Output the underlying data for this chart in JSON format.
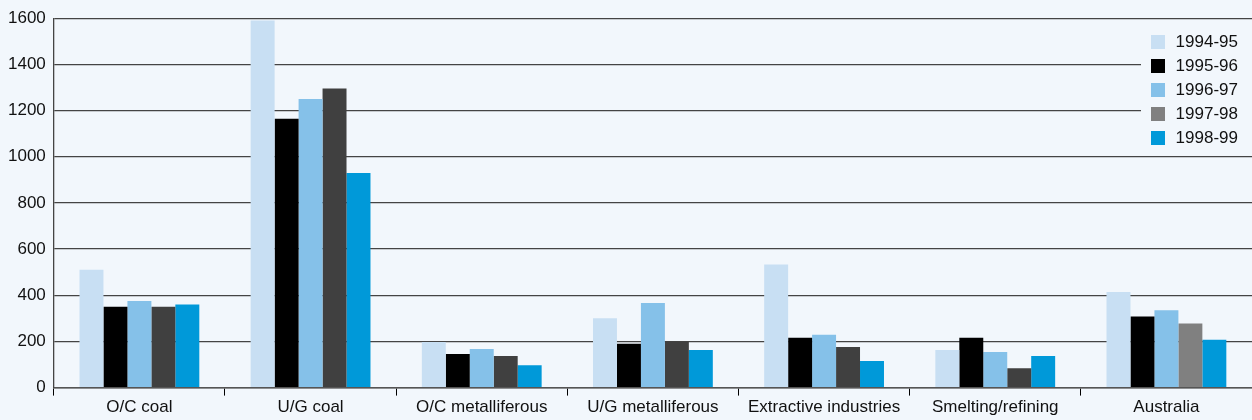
{
  "chart_data": {
    "type": "bar",
    "categories": [
      "O/C coal",
      "U/G coal",
      "O/C metalliferous",
      "U/G metalliferous",
      "Extractive industries",
      "Smelting/refining",
      "Australia"
    ],
    "series": [
      {
        "name": "1994-95",
        "color": "#c8dff3",
        "values": [
          510,
          1590,
          198,
          300,
          533,
          163,
          414
        ]
      },
      {
        "name": "1995-96",
        "color": "#000000",
        "values": [
          350,
          1165,
          145,
          190,
          216,
          216,
          308
        ]
      },
      {
        "name": "1996-97",
        "color": "#85c1e9",
        "values": [
          375,
          1250,
          167,
          366,
          229,
          154,
          335
        ]
      },
      {
        "name": "1997-98",
        "color": "#808080",
        "colors": [
          "#404040",
          "#404040",
          "#404040",
          "#404040",
          "#404040",
          "#404040",
          "#808080"
        ],
        "values": [
          350,
          1295,
          137,
          200,
          176,
          84,
          278
        ]
      },
      {
        "name": "1998-99",
        "color": "#0099d9",
        "values": [
          360,
          930,
          97,
          163,
          115,
          137,
          207
        ]
      }
    ],
    "ylim": [
      0,
      1600
    ],
    "yticks": [
      0,
      200,
      400,
      600,
      800,
      1000,
      1200,
      1400,
      1600
    ],
    "grid": "y",
    "legend": "top right"
  }
}
